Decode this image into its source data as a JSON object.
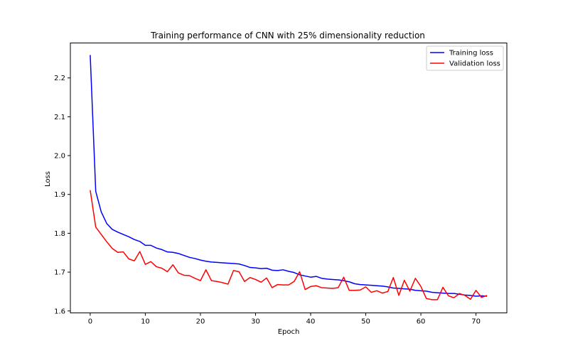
{
  "chart_data": {
    "type": "line",
    "title": "Training performance of CNN with 25% dimensionality reduction",
    "xlabel": "Epoch",
    "ylabel": "Loss",
    "xlim": [
      -3.6,
      75.6
    ],
    "ylim": [
      1.595,
      2.29
    ],
    "xticks": [
      0,
      10,
      20,
      30,
      40,
      50,
      60,
      70
    ],
    "yticks": [
      1.6,
      1.7,
      1.8,
      1.9,
      2.0,
      2.1,
      2.2
    ],
    "ytick_labels": [
      "1.6",
      "1.7",
      "1.8",
      "1.9",
      "2.0",
      "2.1",
      "2.2"
    ],
    "grid": false,
    "legend_position": "top-right",
    "x": [
      0,
      1,
      2,
      3,
      4,
      5,
      6,
      7,
      8,
      9,
      10,
      11,
      12,
      13,
      14,
      15,
      16,
      17,
      18,
      19,
      20,
      21,
      22,
      23,
      24,
      25,
      26,
      27,
      28,
      29,
      30,
      31,
      32,
      33,
      34,
      35,
      36,
      37,
      38,
      39,
      40,
      41,
      42,
      43,
      44,
      45,
      46,
      47,
      48,
      49,
      50,
      51,
      52,
      53,
      54,
      55,
      56,
      57,
      58,
      59,
      60,
      61,
      62,
      63,
      64,
      65,
      66,
      67,
      68,
      69,
      70,
      71,
      72
    ],
    "series": [
      {
        "name": "Training loss",
        "color": "#0000ff",
        "values": [
          2.259,
          1.908,
          1.855,
          1.825,
          1.81,
          1.803,
          1.797,
          1.791,
          1.784,
          1.779,
          1.769,
          1.769,
          1.762,
          1.758,
          1.752,
          1.751,
          1.748,
          1.743,
          1.738,
          1.735,
          1.731,
          1.728,
          1.726,
          1.725,
          1.724,
          1.723,
          1.722,
          1.721,
          1.717,
          1.712,
          1.711,
          1.709,
          1.71,
          1.705,
          1.704,
          1.706,
          1.702,
          1.699,
          1.693,
          1.69,
          1.687,
          1.689,
          1.684,
          1.682,
          1.681,
          1.68,
          1.678,
          1.675,
          1.67,
          1.668,
          1.667,
          1.666,
          1.665,
          1.664,
          1.662,
          1.659,
          1.658,
          1.657,
          1.656,
          1.653,
          1.652,
          1.651,
          1.648,
          1.647,
          1.646,
          1.645,
          1.645,
          1.643,
          1.641,
          1.64,
          1.638,
          1.639,
          1.638
        ]
      },
      {
        "name": "Validation loss",
        "color": "#ff0000",
        "values": [
          1.911,
          1.816,
          1.797,
          1.778,
          1.761,
          1.751,
          1.752,
          1.734,
          1.729,
          1.753,
          1.72,
          1.727,
          1.714,
          1.71,
          1.701,
          1.719,
          1.698,
          1.692,
          1.691,
          1.684,
          1.678,
          1.706,
          1.678,
          1.676,
          1.673,
          1.669,
          1.704,
          1.701,
          1.676,
          1.686,
          1.681,
          1.674,
          1.685,
          1.66,
          1.668,
          1.667,
          1.667,
          1.676,
          1.701,
          1.655,
          1.663,
          1.665,
          1.66,
          1.659,
          1.658,
          1.66,
          1.687,
          1.653,
          1.653,
          1.654,
          1.662,
          1.648,
          1.652,
          1.646,
          1.65,
          1.686,
          1.64,
          1.679,
          1.651,
          1.684,
          1.663,
          1.632,
          1.629,
          1.629,
          1.661,
          1.639,
          1.634,
          1.645,
          1.64,
          1.63,
          1.653,
          1.635,
          1.64
        ]
      }
    ]
  }
}
